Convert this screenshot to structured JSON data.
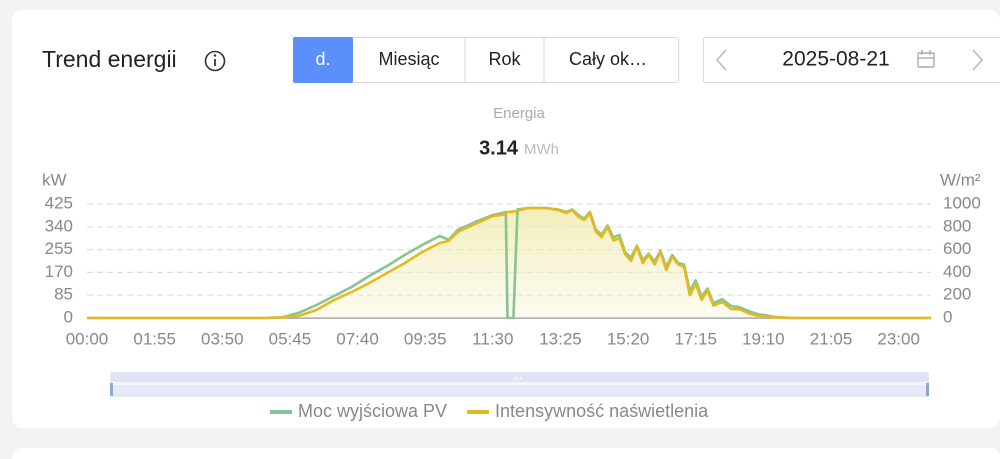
{
  "header": {
    "title": "Trend energii",
    "tabs": [
      "d.",
      "Miesiąc",
      "Rok",
      "Cały ok…"
    ],
    "date": "2025-08-21"
  },
  "summary": {
    "label": "Energia",
    "value": 3.14,
    "unit": "MWh"
  },
  "chart_data": {
    "type": "line",
    "y_label": "kW",
    "y2_label": "W/m²",
    "x": [
      0,
      300,
      330,
      360,
      390,
      420,
      450,
      480,
      510,
      540,
      570,
      600,
      615,
      630,
      660,
      690,
      705,
      712,
      715,
      725,
      732,
      750,
      780,
      800,
      815,
      825,
      835,
      845,
      855,
      865,
      875,
      885,
      895,
      905,
      915,
      925,
      935,
      945,
      955,
      965,
      975,
      985,
      995,
      1005,
      1015,
      1025,
      1035,
      1045,
      1055,
      1065,
      1080,
      1095,
      1110,
      1125,
      1140,
      1170,
      1200,
      1435
    ],
    "xlim": [
      0,
      1435
    ],
    "xticks": [
      {
        "value": 0,
        "label": "00:00"
      },
      {
        "value": 115,
        "label": "01:55"
      },
      {
        "value": 230,
        "label": "03:50"
      },
      {
        "value": 345,
        "label": "05:45"
      },
      {
        "value": 460,
        "label": "07:40"
      },
      {
        "value": 575,
        "label": "09:35"
      },
      {
        "value": 690,
        "label": "11:30"
      },
      {
        "value": 805,
        "label": "13:25"
      },
      {
        "value": 920,
        "label": "15:20"
      },
      {
        "value": 1035,
        "label": "17:15"
      },
      {
        "value": 1150,
        "label": "19:10"
      },
      {
        "value": 1265,
        "label": "21:05"
      },
      {
        "value": 1380,
        "label": "23:00"
      }
    ],
    "ylim": [
      0,
      425
    ],
    "yticks": [
      0,
      85,
      170,
      255,
      340,
      425
    ],
    "y2lim": [
      0,
      1000
    ],
    "y2ticks": [
      0,
      200,
      400,
      600,
      800,
      1000
    ],
    "grid": true,
    "legend": "bottom",
    "series": [
      {
        "name": "Moc wyjściowa PV",
        "color": "#86c492",
        "values": [
          0,
          0,
          2,
          19,
          48,
          82,
          116,
          157,
          194,
          235,
          272,
          306,
          291,
          328,
          358,
          384,
          391,
          395,
          0,
          0,
          405,
          410,
          410,
          405,
          395,
          405,
          385,
          370,
          395,
          330,
          310,
          345,
          300,
          310,
          245,
          225,
          270,
          215,
          240,
          210,
          250,
          190,
          235,
          205,
          200,
          100,
          140,
          80,
          110,
          55,
          70,
          45,
          40,
          25,
          15,
          4,
          0,
          0
        ]
      },
      {
        "name": "Intensywność naświetlenia",
        "color": "#e5b81e",
        "axis": "y2",
        "values": [
          0,
          0,
          5,
          18,
          70,
          158,
          228,
          307,
          395,
          482,
          579,
          658,
          676,
          754,
          825,
          895,
          904,
          915,
          930,
          935,
          940,
          965,
          965,
          950,
          920,
          950,
          890,
          860,
          920,
          760,
          710,
          800,
          680,
          700,
          560,
          500,
          630,
          480,
          560,
          470,
          580,
          420,
          540,
          470,
          450,
          200,
          300,
          160,
          240,
          110,
          140,
          80,
          75,
          40,
          20,
          5,
          0,
          0
        ]
      }
    ]
  }
}
